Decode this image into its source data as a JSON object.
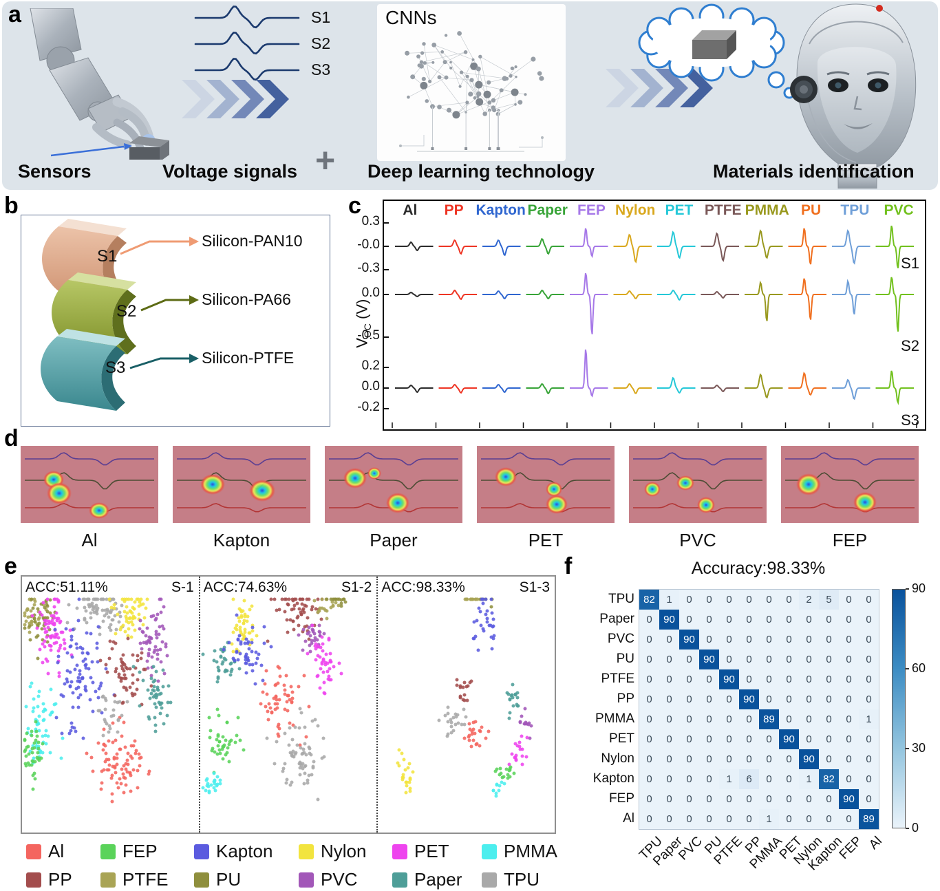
{
  "letters": {
    "a": "a",
    "b": "b",
    "c": "c",
    "d": "d",
    "e": "e",
    "f": "f"
  },
  "panel_a": {
    "sensors_label": "Sensors",
    "signal_labels": [
      "S1",
      "S2",
      "S3"
    ],
    "voltage_label": "Voltage signals",
    "plus": "+",
    "cnns_label": "CNNs",
    "deep_label": "Deep learning technology",
    "materials_label": "Materials identification"
  },
  "panel_b": {
    "rows": [
      {
        "sensor": "S1",
        "material": "Silicon-PAN10"
      },
      {
        "sensor": "S2",
        "material": "Silicon-PA66"
      },
      {
        "sensor": "S3",
        "material": "Silicon-PTFE"
      }
    ]
  },
  "panel_c": {
    "ylabel_v": "V",
    "ylabel_sub": "OC",
    "ylabel_unit": "(V)",
    "row_labels": [
      "S1",
      "S2",
      "S3"
    ]
  },
  "panel_d": {
    "cards": [
      {
        "label": "Al",
        "blobs": [
          [
            24,
            44,
            30,
            26
          ],
          [
            28,
            62,
            36,
            32
          ],
          [
            57,
            84,
            30,
            24
          ]
        ]
      },
      {
        "label": "Kapton",
        "blobs": [
          [
            29,
            50,
            36,
            30
          ],
          [
            65,
            58,
            38,
            32
          ]
        ]
      },
      {
        "label": "Paper",
        "blobs": [
          [
            22,
            42,
            34,
            30
          ],
          [
            36,
            36,
            20,
            18
          ],
          [
            53,
            74,
            34,
            30
          ]
        ]
      },
      {
        "label": "PET",
        "blobs": [
          [
            21,
            40,
            32,
            28
          ],
          [
            56,
            56,
            24,
            22
          ],
          [
            58,
            76,
            32,
            28
          ]
        ]
      },
      {
        "label": "PVC",
        "blobs": [
          [
            17,
            56,
            24,
            22
          ],
          [
            41,
            48,
            26,
            22
          ],
          [
            56,
            77,
            26,
            24
          ]
        ]
      },
      {
        "label": "FEP",
        "blobs": [
          [
            20,
            50,
            36,
            32
          ],
          [
            61,
            73,
            34,
            30
          ]
        ]
      }
    ]
  },
  "panel_e": {
    "legend": [
      {
        "name": "Al",
        "color": "#f4655f"
      },
      {
        "name": "FEP",
        "color": "#5ad35a"
      },
      {
        "name": "Kapton",
        "color": "#5b5bdf"
      },
      {
        "name": "Nylon",
        "color": "#f2e43e"
      },
      {
        "name": "PET",
        "color": "#ee44ee"
      },
      {
        "name": "PMMA",
        "color": "#4ceeee"
      },
      {
        "name": "PP",
        "color": "#a34d4d"
      },
      {
        "name": "PTFE",
        "color": "#a9a455"
      },
      {
        "name": "PU",
        "color": "#8f8f3d"
      },
      {
        "name": "PVC",
        "color": "#a257b8"
      },
      {
        "name": "Paper",
        "color": "#4e9e98"
      },
      {
        "name": "TPU",
        "color": "#a9a9a9"
      }
    ]
  },
  "chart_data": [
    {
      "type": "heatmap",
      "title": "Accuracy:98.33%",
      "labels": [
        "TPU",
        "Paper",
        "PVC",
        "PU",
        "PTFE",
        "PP",
        "PMMA",
        "PET",
        "Nylon",
        "Kapton",
        "FEP",
        "Al"
      ],
      "matrix": [
        [
          82,
          1,
          0,
          0,
          0,
          0,
          0,
          0,
          2,
          5,
          0,
          0
        ],
        [
          0,
          90,
          0,
          0,
          0,
          0,
          0,
          0,
          0,
          0,
          0,
          0
        ],
        [
          0,
          0,
          90,
          0,
          0,
          0,
          0,
          0,
          0,
          0,
          0,
          0
        ],
        [
          0,
          0,
          0,
          90,
          0,
          0,
          0,
          0,
          0,
          0,
          0,
          0
        ],
        [
          0,
          0,
          0,
          0,
          90,
          0,
          0,
          0,
          0,
          0,
          0,
          0
        ],
        [
          0,
          0,
          0,
          0,
          0,
          90,
          0,
          0,
          0,
          0,
          0,
          0
        ],
        [
          0,
          0,
          0,
          0,
          0,
          0,
          89,
          0,
          0,
          0,
          0,
          1
        ],
        [
          0,
          0,
          0,
          0,
          0,
          0,
          0,
          90,
          0,
          0,
          0,
          0
        ],
        [
          0,
          0,
          0,
          0,
          0,
          0,
          0,
          0,
          90,
          0,
          0,
          0
        ],
        [
          0,
          0,
          0,
          0,
          1,
          6,
          0,
          0,
          1,
          82,
          0,
          0
        ],
        [
          0,
          0,
          0,
          0,
          0,
          0,
          0,
          0,
          0,
          0,
          90,
          0
        ],
        [
          0,
          0,
          0,
          0,
          0,
          0,
          1,
          0,
          0,
          0,
          0,
          89
        ]
      ],
      "vmin": 0,
      "vmax": 90,
      "colorbar_ticks": [
        90,
        60,
        30,
        0
      ],
      "colormap": "Blues"
    },
    {
      "type": "line",
      "materials": [
        {
          "name": "Al",
          "color": "#2b2b2b"
        },
        {
          "name": "PP",
          "color": "#ee3524"
        },
        {
          "name": "Kapton",
          "color": "#2f66d0"
        },
        {
          "name": "Paper",
          "color": "#38a438"
        },
        {
          "name": "FEP",
          "color": "#a678e8"
        },
        {
          "name": "Nylon",
          "color": "#d9a81e"
        },
        {
          "name": "PET",
          "color": "#25c8d8"
        },
        {
          "name": "PTFE",
          "color": "#7a5858"
        },
        {
          "name": "PMMA",
          "color": "#99991f"
        },
        {
          "name": "PU",
          "color": "#f07020"
        },
        {
          "name": "TPU",
          "color": "#6f9fd8"
        },
        {
          "name": "PVC",
          "color": "#72c11e"
        }
      ],
      "rows": [
        {
          "label": "S1",
          "baseline": 66,
          "ticks": [
            [
              "0.3",
              32
            ],
            [
              "-0.0",
              66
            ],
            [
              "-0.3",
              100
            ]
          ],
          "amps": [
            [
              6,
              6
            ],
            [
              9,
              11
            ],
            [
              9,
              13
            ],
            [
              11,
              11
            ],
            [
              27,
              15
            ],
            [
              17,
              23
            ],
            [
              21,
              17
            ],
            [
              19,
              21
            ],
            [
              23,
              17
            ],
            [
              27,
              27
            ],
            [
              23,
              25
            ],
            [
              31,
              33
            ]
          ]
        },
        {
          "label": "S2",
          "baseline": 136,
          "ticks": [
            [
              "0.0",
              136
            ],
            [
              "-0.5",
              198
            ]
          ],
          "amps": [
            [
              3,
              3
            ],
            [
              6,
              7
            ],
            [
              5,
              6
            ],
            [
              6,
              6
            ],
            [
              32,
              60
            ],
            [
              5,
              6
            ],
            [
              6,
              8
            ],
            [
              4,
              5
            ],
            [
              18,
              40
            ],
            [
              24,
              38
            ],
            [
              20,
              30
            ],
            [
              26,
              56
            ]
          ]
        },
        {
          "label": "S3",
          "baseline": 272,
          "ticks": [
            [
              "0.2",
              242
            ],
            [
              "0.0",
              272
            ],
            [
              "-0.2",
              302
            ]
          ],
          "amps": [
            [
              4,
              6
            ],
            [
              5,
              7
            ],
            [
              5,
              6
            ],
            [
              6,
              8
            ],
            [
              58,
              12
            ],
            [
              6,
              8
            ],
            [
              15,
              7
            ],
            [
              4,
              5
            ],
            [
              20,
              14
            ],
            [
              22,
              10
            ],
            [
              12,
              16
            ],
            [
              26,
              22
            ]
          ]
        }
      ]
    },
    {
      "type": "scatter",
      "sections": [
        {
          "acc": "ACC:51.11%",
          "tag": "S-1",
          "clusters": [
            [
              "PTFE",
              6,
              14,
              3,
              4,
              30
            ],
            [
              "PU",
              11,
              17,
              4,
              5,
              40
            ],
            [
              "PET",
              17,
              23,
              5,
              7,
              75
            ],
            [
              "TPU",
              45,
              13,
              8,
              5,
              75
            ],
            [
              "Nylon",
              61,
              14,
              5,
              5,
              55
            ],
            [
              "PVC",
              74,
              25,
              4,
              7,
              55
            ],
            [
              "Kapton",
              33,
              39,
              6,
              11,
              85
            ],
            [
              "PP",
              59,
              38,
              6,
              6,
              55
            ],
            [
              "Paper",
              76,
              48,
              4,
              7,
              45
            ],
            [
              "PMMA",
              10,
              57,
              5,
              8,
              55
            ],
            [
              "FEP",
              6,
              69,
              3,
              5,
              40
            ],
            [
              "Al",
              55,
              73,
              8,
              7,
              80
            ],
            [
              "TPU",
              50,
              53,
              4,
              4,
              25
            ]
          ]
        },
        {
          "acc": "ACC:74.63%",
          "tag": "S1-2",
          "clusters": [
            [
              "Nylon",
              24,
              18,
              4,
              5,
              45
            ],
            [
              "PP",
              55,
              12,
              6,
              5,
              60
            ],
            [
              "PTFE",
              71,
              12,
              3,
              3,
              18
            ],
            [
              "PU",
              78,
              8,
              2.5,
              2.5,
              14
            ],
            [
              "Paper",
              12,
              33,
              4,
              4,
              35
            ],
            [
              "Kapton",
              27,
              31,
              5,
              5,
              45
            ],
            [
              "PVC",
              64,
              24,
              3.5,
              4,
              28
            ],
            [
              "PET",
              71,
              34,
              5,
              6,
              45
            ],
            [
              "Al",
              46,
              48,
              6,
              7,
              55
            ],
            [
              "FEP",
              13,
              65,
              4,
              5,
              40
            ],
            [
              "PMMA",
              7,
              81,
              3,
              2.5,
              22
            ],
            [
              "TPU",
              55,
              69,
              7,
              8,
              65
            ]
          ]
        },
        {
          "acc": "ACC:98.33%",
          "tag": "S1-3",
          "clusters": [
            [
              "PTFE",
              53,
              6,
              3,
              2.5,
              16
            ],
            [
              "PU",
              60,
              8,
              2,
              2,
              8
            ],
            [
              "Kapton",
              61,
              17,
              4,
              6,
              30
            ],
            [
              "PP",
              48,
              44,
              2.5,
              2.5,
              16
            ],
            [
              "TPU",
              43,
              56,
              3.5,
              3.5,
              22
            ],
            [
              "Al",
              54,
              61,
              3.5,
              3.5,
              22
            ],
            [
              "Paper",
              76,
              48,
              2.5,
              3.5,
              18
            ],
            [
              "PVC",
              84,
              57,
              2.5,
              2.5,
              13
            ],
            [
              "PET",
              80,
              68,
              3,
              3.5,
              18
            ],
            [
              "FEP",
              72,
              76,
              2.5,
              2.5,
              16
            ],
            [
              "Nylon",
              16,
              78,
              2.5,
              4,
              22
            ],
            [
              "PMMA",
              67,
              83,
              2,
              2,
              10
            ]
          ]
        }
      ]
    }
  ]
}
